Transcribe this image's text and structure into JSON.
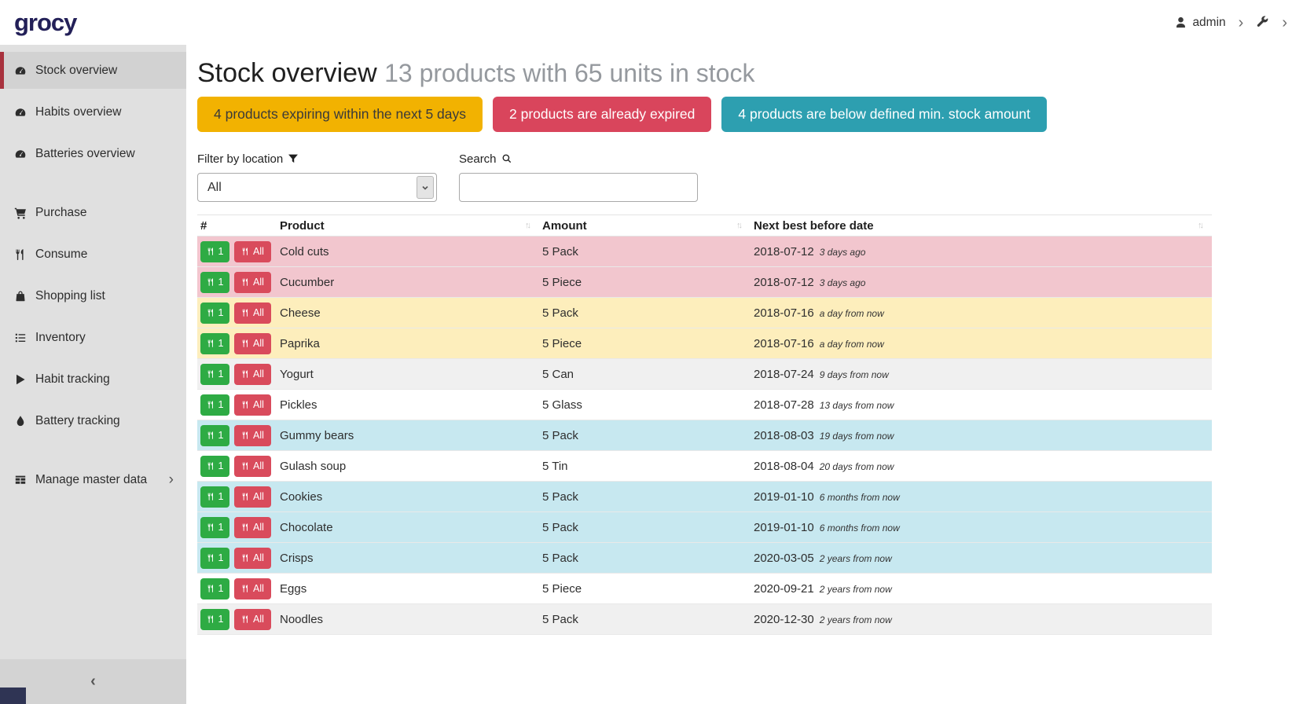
{
  "header": {
    "logo": "grocy",
    "user": "admin"
  },
  "icons": {
    "chevron_right": "›",
    "collapse_left": "‹",
    "sort": "↑↓"
  },
  "colors": {
    "logo_navy": "#232058",
    "accent_red": "#a8323e",
    "row_expired": "#f2c6ce",
    "row_expiring": "#fdeebc",
    "row_below_min": "#c7e8f0",
    "btn_green": "#2eab44",
    "btn_red": "#d94b5c"
  },
  "sidebar": {
    "items": [
      {
        "label": "Stock overview",
        "icon": "gauge-icon",
        "active": true
      },
      {
        "label": "Habits overview",
        "icon": "gauge-icon"
      },
      {
        "label": "Batteries overview",
        "icon": "gauge-icon"
      },
      {
        "label": "Purchase",
        "icon": "cart-icon",
        "gap_before": true
      },
      {
        "label": "Consume",
        "icon": "utensils-icon"
      },
      {
        "label": "Shopping list",
        "icon": "bag-icon"
      },
      {
        "label": "Inventory",
        "icon": "list-icon"
      },
      {
        "label": "Habit tracking",
        "icon": "play-icon"
      },
      {
        "label": "Battery tracking",
        "icon": "droplet-icon"
      },
      {
        "label": "Manage master data",
        "icon": "table-icon",
        "gap_before": true,
        "has_submenu": true
      }
    ]
  },
  "page": {
    "title": "Stock overview",
    "subtitle": "13 products with 65 units in stock",
    "banners": [
      {
        "text": "4 products expiring within the next 5 days",
        "color": "#f2b201",
        "text_color": "#3a3a3a"
      },
      {
        "text": "2 products are already expired",
        "color": "#d9455c",
        "text_color": "#ffffff"
      },
      {
        "text": "4 products are below defined min. stock amount",
        "color": "#2d9fb0",
        "text_color": "#ffffff"
      }
    ],
    "filter_label": "Filter by location",
    "filter_value": "All",
    "search_label": "Search",
    "search_value": ""
  },
  "table": {
    "columns": [
      "#",
      "Product",
      "Amount",
      "Next best before date"
    ],
    "consume_buttons": {
      "one": "1",
      "all": "All"
    },
    "rows": [
      {
        "product": "Cold cuts",
        "amount": "5 Pack",
        "date": "2018-07-12",
        "relative": "3 days ago",
        "status": "expired"
      },
      {
        "product": "Cucumber",
        "amount": "5 Piece",
        "date": "2018-07-12",
        "relative": "3 days ago",
        "status": "expired"
      },
      {
        "product": "Cheese",
        "amount": "5 Pack",
        "date": "2018-07-16",
        "relative": "a day from now",
        "status": "expiring"
      },
      {
        "product": "Paprika",
        "amount": "5 Piece",
        "date": "2018-07-16",
        "relative": "a day from now",
        "status": "expiring"
      },
      {
        "product": "Yogurt",
        "amount": "5 Can",
        "date": "2018-07-24",
        "relative": "9 days from now",
        "status": "stripe"
      },
      {
        "product": "Pickles",
        "amount": "5 Glass",
        "date": "2018-07-28",
        "relative": "13 days from now",
        "status": "none"
      },
      {
        "product": "Gummy bears",
        "amount": "5 Pack",
        "date": "2018-08-03",
        "relative": "19 days from now",
        "status": "belowmin"
      },
      {
        "product": "Gulash soup",
        "amount": "5 Tin",
        "date": "2018-08-04",
        "relative": "20 days from now",
        "status": "none"
      },
      {
        "product": "Cookies",
        "amount": "5 Pack",
        "date": "2019-01-10",
        "relative": "6 months from now",
        "status": "belowmin"
      },
      {
        "product": "Chocolate",
        "amount": "5 Pack",
        "date": "2019-01-10",
        "relative": "6 months from now",
        "status": "belowmin"
      },
      {
        "product": "Crisps",
        "amount": "5 Pack",
        "date": "2020-03-05",
        "relative": "2 years from now",
        "status": "belowmin"
      },
      {
        "product": "Eggs",
        "amount": "5 Piece",
        "date": "2020-09-21",
        "relative": "2 years from now",
        "status": "none"
      },
      {
        "product": "Noodles",
        "amount": "5 Pack",
        "date": "2020-12-30",
        "relative": "2 years from now",
        "status": "stripe"
      }
    ]
  }
}
